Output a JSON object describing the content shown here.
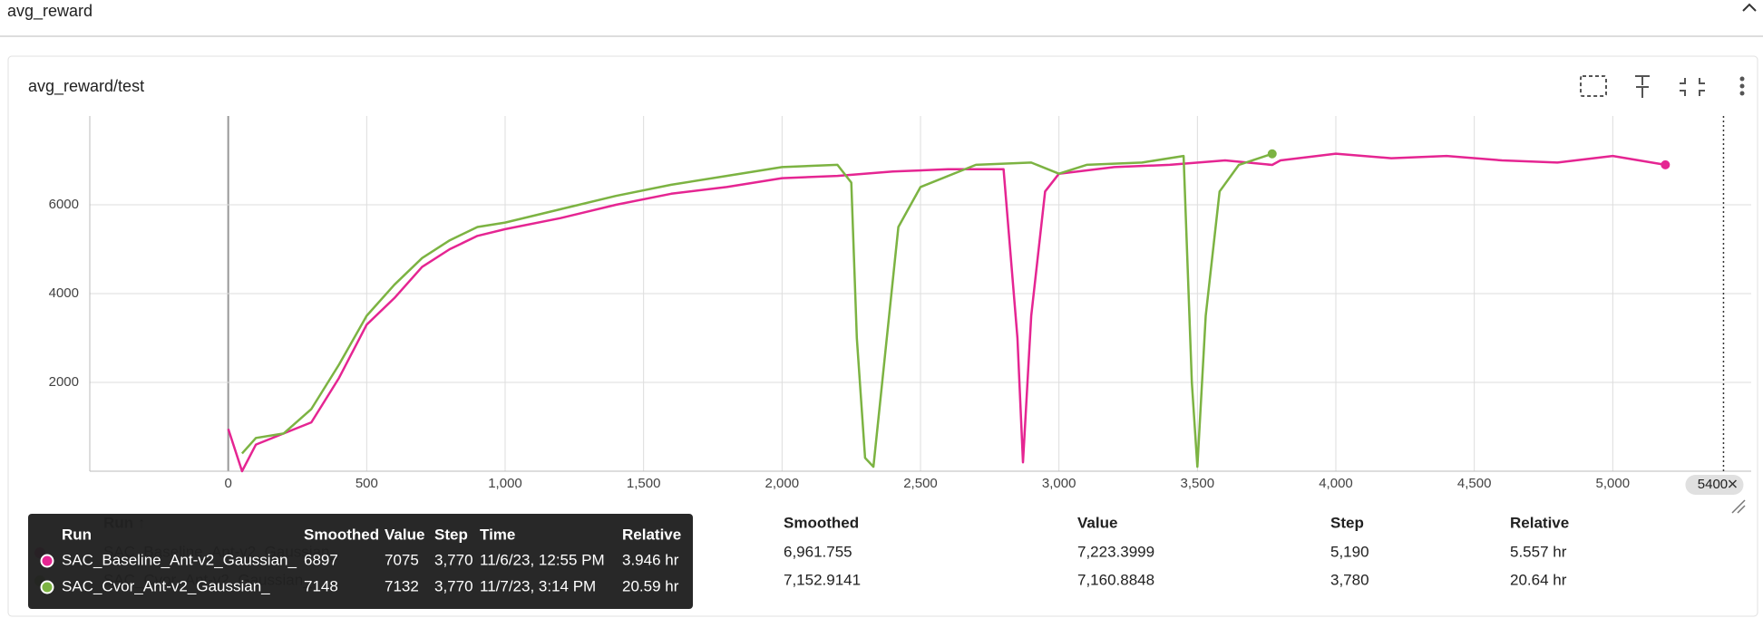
{
  "header": {
    "title": "avg_reward"
  },
  "card": {
    "title": "avg_reward/test"
  },
  "chart_data": {
    "type": "line",
    "xlim": [
      -500,
      5500
    ],
    "ylim": [
      0,
      8000
    ],
    "xticks": [
      0,
      500,
      {
        "value": 1000,
        "label": "1,000"
      },
      {
        "value": 1500,
        "label": "1,500"
      },
      {
        "value": 2000,
        "label": "2,000"
      },
      {
        "value": 2500,
        "label": "2,500"
      },
      {
        "value": 3000,
        "label": "3,000"
      },
      {
        "value": 3500,
        "label": "3,500"
      },
      {
        "value": 4000,
        "label": "4,000"
      },
      {
        "value": 4500,
        "label": "4,500"
      },
      {
        "value": 5000,
        "label": "5,000"
      }
    ],
    "yticks": [
      2000,
      4000,
      6000
    ],
    "grid": true,
    "step_marker": 5400,
    "series": [
      {
        "name": "SAC_Baseline_Ant-v2_Gaussian_",
        "color": "#e52592",
        "x": [
          0,
          50,
          100,
          200,
          300,
          400,
          500,
          600,
          700,
          800,
          900,
          1000,
          1200,
          1400,
          1600,
          1800,
          2000,
          2200,
          2400,
          2600,
          2800,
          2850,
          2870,
          2900,
          2950,
          3000,
          3200,
          3400,
          3600,
          3770,
          3800,
          4000,
          4200,
          4400,
          4600,
          4800,
          5000,
          5190
        ],
        "values": [
          950,
          0,
          600,
          850,
          1100,
          2100,
          3300,
          3900,
          4600,
          5000,
          5300,
          5450,
          5700,
          6000,
          6250,
          6400,
          6600,
          6650,
          6750,
          6800,
          6800,
          3000,
          200,
          3500,
          6300,
          6700,
          6850,
          6900,
          7000,
          6897,
          7000,
          7150,
          7050,
          7100,
          7000,
          6950,
          7100,
          6900
        ]
      },
      {
        "name": "SAC_Cvor_Ant-v2_Gaussian_",
        "color": "#7cb342",
        "x": [
          50,
          100,
          200,
          300,
          400,
          500,
          600,
          700,
          800,
          900,
          1000,
          1200,
          1400,
          1600,
          1800,
          2000,
          2200,
          2250,
          2270,
          2300,
          2330,
          2370,
          2420,
          2500,
          2700,
          2900,
          3000,
          3100,
          3300,
          3450,
          3480,
          3500,
          3530,
          3580,
          3650,
          3770
        ],
        "values": [
          400,
          750,
          850,
          1400,
          2400,
          3500,
          4200,
          4800,
          5200,
          5500,
          5600,
          5900,
          6200,
          6450,
          6650,
          6850,
          6900,
          6500,
          3000,
          300,
          100,
          2500,
          5500,
          6400,
          6900,
          6950,
          6700,
          6900,
          6950,
          7100,
          2000,
          100,
          3500,
          6300,
          6900,
          7148
        ]
      }
    ]
  },
  "tooltip": {
    "columns": [
      "Run",
      "Smoothed",
      "Value",
      "Step",
      "Time",
      "Relative"
    ],
    "rows": [
      [
        "SAC_Baseline_Ant-v2_Gaussian_",
        "6897",
        "7075",
        "3,770",
        "11/6/23, 12:55 PM",
        "3.946 hr"
      ],
      [
        "SAC_Cvor_Ant-v2_Gaussian_",
        "7148",
        "7132",
        "3,770",
        "11/7/23, 3:14 PM",
        "20.59 hr"
      ]
    ]
  },
  "run_table": {
    "columns": [
      "Run ↑",
      "Smoothed",
      "Value",
      "Step",
      "Relative"
    ],
    "rows": [
      [
        "SAC_Baseline_Ant-v2_Gaussian_",
        "6,961.755",
        "7,223.3999",
        "5,190",
        "5.557 hr"
      ],
      [
        "SAC_Cvor_Ant-v2_Gaussian_",
        "7,152.9141",
        "7,160.8848",
        "3,780",
        "20.64 hr"
      ]
    ]
  }
}
